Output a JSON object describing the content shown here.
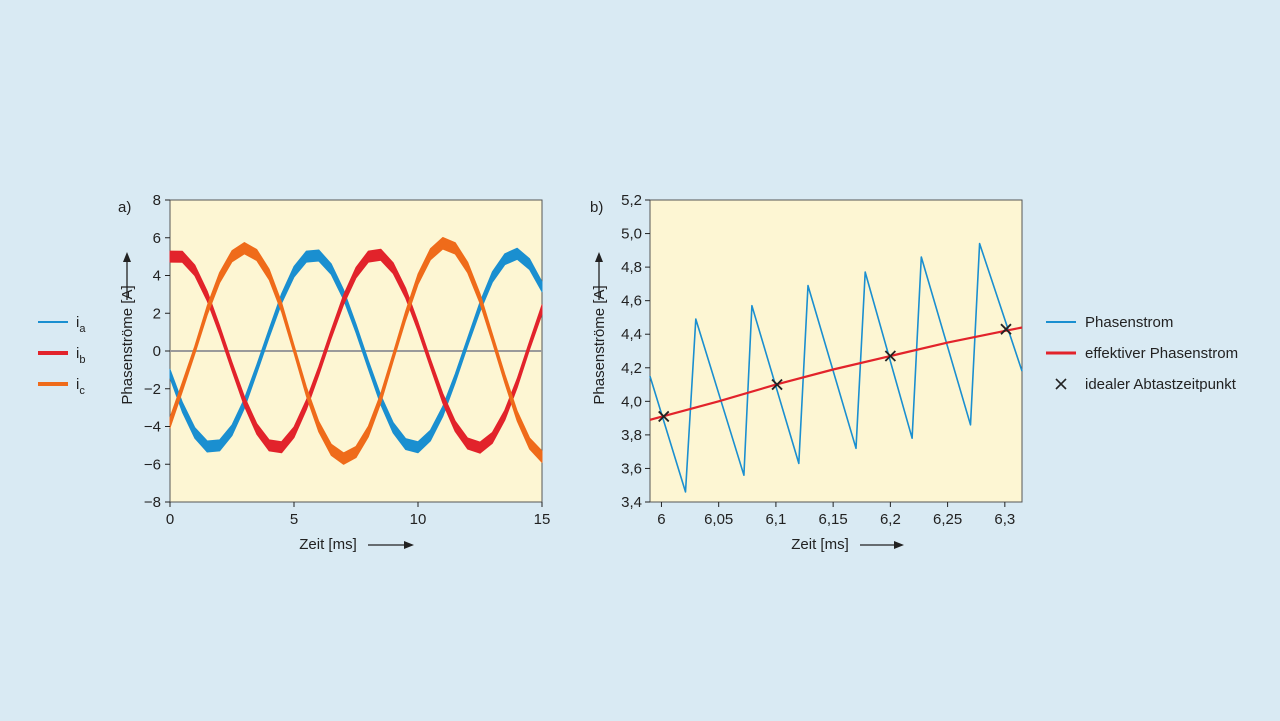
{
  "colors": {
    "background": "#d9eaf3",
    "plot_area": "#fdf6d3",
    "ia": "#1a8fd0",
    "ib": "#e2232b",
    "ic": "#ef6b1a",
    "zero_line": "#9a9a9a",
    "marker": "#222222"
  },
  "chart_data": [
    {
      "type": "line",
      "panel_label": "a)",
      "xlabel": "Zeit [ms]",
      "ylabel": "Phasenströme [A]",
      "xlim": [
        0,
        15
      ],
      "ylim": [
        -8,
        8
      ],
      "xticks": [
        "0",
        "5",
        "10",
        "15"
      ],
      "yticks": [
        "−8",
        "−6",
        "−4",
        "−2",
        "0",
        "2",
        "4",
        "6",
        "8"
      ],
      "grid": false,
      "legend_position": "left",
      "series": [
        {
          "name": "ia",
          "legend_main": "i",
          "legend_sub": "a",
          "color": "#1a8fd0",
          "band_width": 0.6,
          "x": [
            0,
            0.5,
            1.0,
            1.5,
            2.0,
            2.5,
            3.0,
            3.5,
            4.0,
            4.5,
            5.0,
            5.5,
            6.0,
            6.5,
            7.0,
            7.5,
            8.0,
            8.5,
            9.0,
            9.5,
            10.0,
            10.5,
            11.0,
            11.5,
            12.0,
            12.5,
            13.0,
            13.5,
            14.0,
            14.5,
            15.0
          ],
          "y": [
            -1.2,
            -2.98,
            -4.34,
            -5.06,
            -5.0,
            -4.2,
            -2.78,
            -0.95,
            0.95,
            2.78,
            4.2,
            5.0,
            5.06,
            4.34,
            2.98,
            1.2,
            -0.74,
            -2.6,
            -4.07,
            -4.93,
            -5.1,
            -4.48,
            -3.2,
            -1.45,
            0.47,
            2.34,
            3.92,
            4.86,
            5.15,
            4.6,
            3.4
          ]
        },
        {
          "name": "ib",
          "legend_main": "i",
          "legend_sub": "b",
          "color": "#e2232b",
          "band_width": 0.6,
          "x": [
            0,
            0.5,
            1.0,
            1.5,
            2.0,
            2.5,
            3.0,
            3.5,
            4.0,
            4.5,
            5.0,
            5.5,
            6.0,
            6.5,
            7.0,
            7.5,
            8.0,
            8.5,
            9.0,
            9.5,
            10.0,
            10.5,
            11.0,
            11.5,
            12.0,
            12.5,
            13.0,
            13.5,
            14.0,
            14.5,
            15.0
          ],
          "y": [
            5.0,
            4.99,
            4.27,
            2.91,
            1.12,
            -0.82,
            -2.67,
            -4.13,
            -5.0,
            -5.1,
            -4.3,
            -2.85,
            -1.05,
            0.89,
            2.72,
            4.15,
            5.0,
            5.1,
            4.39,
            3.07,
            1.3,
            -0.64,
            -2.51,
            -3.99,
            -4.9,
            -5.12,
            -4.6,
            -3.4,
            -1.7,
            0.3,
            2.2
          ]
        },
        {
          "name": "ic",
          "legend_main": "i",
          "legend_sub": "c",
          "color": "#ef6b1a",
          "band_width": 0.6,
          "x": [
            0,
            0.5,
            1.0,
            1.5,
            2.0,
            2.5,
            3.0,
            3.5,
            4.0,
            4.5,
            5.0,
            5.5,
            6.0,
            6.5,
            7.0,
            7.5,
            8.0,
            8.5,
            9.0,
            9.5,
            10.0,
            10.5,
            11.0,
            11.5,
            12.0,
            12.5,
            13.0,
            13.5,
            14.0,
            14.5,
            15.0
          ],
          "y": [
            -3.8,
            -1.9,
            0.05,
            2.15,
            3.88,
            5.02,
            5.45,
            5.08,
            4.05,
            2.32,
            0.1,
            -2.15,
            -4.01,
            -5.23,
            -5.7,
            -5.35,
            -4.26,
            -2.5,
            -0.32,
            1.86,
            3.8,
            5.12,
            5.71,
            5.44,
            4.43,
            2.78,
            0.68,
            -1.46,
            -3.45,
            -4.9,
            -5.6
          ]
        }
      ]
    },
    {
      "type": "line",
      "panel_label": "b)",
      "xlabel": "Zeit [ms]",
      "ylabel": "Phasenströme [A]",
      "xlim": [
        5.99,
        6.315
      ],
      "ylim": [
        3.4,
        5.2
      ],
      "xticks": [
        {
          "value": 6.0,
          "label": "6"
        },
        {
          "value": 6.05,
          "label": "6,05"
        },
        {
          "value": 6.1,
          "label": "6,1"
        },
        {
          "value": 6.15,
          "label": "6,15"
        },
        {
          "value": 6.2,
          "label": "6,2"
        },
        {
          "value": 6.25,
          "label": "6,25"
        },
        {
          "value": 6.3,
          "label": "6,3"
        }
      ],
      "yticks": [
        {
          "value": 3.4,
          "label": "3,4"
        },
        {
          "value": 3.6,
          "label": "3,6"
        },
        {
          "value": 3.8,
          "label": "3,8"
        },
        {
          "value": 4.0,
          "label": "4,0"
        },
        {
          "value": 4.2,
          "label": "4,2"
        },
        {
          "value": 4.4,
          "label": "4,4"
        },
        {
          "value": 4.6,
          "label": "4,6"
        },
        {
          "value": 4.8,
          "label": "4,8"
        },
        {
          "value": 5.0,
          "label": "5,0"
        },
        {
          "value": 5.2,
          "label": "5,2"
        }
      ],
      "grid": false,
      "legend_position": "right",
      "series": [
        {
          "name": "Phasenstrom",
          "color": "#1a8fd0",
          "kind": "line",
          "x": [
            5.99,
            6.021,
            6.03,
            6.072,
            6.079,
            6.12,
            6.128,
            6.17,
            6.178,
            6.219,
            6.227,
            6.27,
            6.278,
            6.315
          ],
          "y": [
            4.15,
            3.46,
            4.49,
            3.56,
            4.57,
            3.63,
            4.69,
            3.72,
            4.77,
            3.78,
            4.86,
            3.86,
            4.94,
            4.18
          ]
        },
        {
          "name": "effektiver Phasenstrom",
          "color": "#e2232b",
          "kind": "line",
          "x": [
            5.99,
            6.05,
            6.1,
            6.15,
            6.2,
            6.25,
            6.3,
            6.315
          ],
          "y": [
            3.89,
            4.0,
            4.1,
            4.19,
            4.27,
            4.35,
            4.42,
            4.44
          ]
        },
        {
          "name": "idealer Abtastzeitpunkt",
          "color": "#222222",
          "kind": "marker",
          "x": [
            6.002,
            6.101,
            6.2,
            6.301
          ],
          "y": [
            3.91,
            4.1,
            4.27,
            4.43
          ]
        }
      ]
    }
  ]
}
